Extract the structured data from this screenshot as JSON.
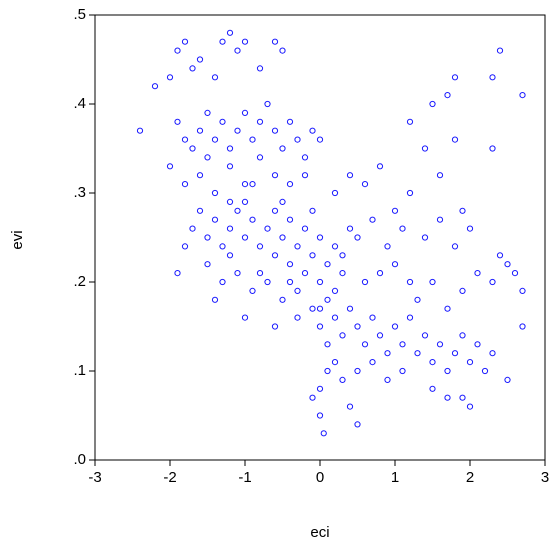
{
  "chart_data": {
    "type": "scatter",
    "xlabel": "eci",
    "ylabel": "evi",
    "color": "#1a1aff",
    "x": [
      -2.4,
      -2.2,
      -2.0,
      -1.9,
      -1.8,
      -1.7,
      -1.6,
      -1.5,
      -1.4,
      -1.3,
      -1.2,
      -1.1,
      -1.0,
      -0.8,
      -0.6,
      -0.5,
      -1.9,
      -1.8,
      -1.7,
      -1.6,
      -1.5,
      -1.4,
      -1.3,
      -1.2,
      -1.1,
      -1.0,
      -0.9,
      -0.8,
      -0.7,
      -0.6,
      -0.5,
      -0.4,
      -0.3,
      -0.2,
      -0.1,
      0.0,
      -2.0,
      -1.8,
      -1.6,
      -1.4,
      -1.2,
      -1.0,
      -0.8,
      -0.6,
      -0.4,
      -0.2,
      -1.6,
      -1.5,
      -1.4,
      -1.3,
      -1.2,
      -1.1,
      -1.0,
      -0.9,
      -0.8,
      -0.7,
      -0.6,
      -0.5,
      -0.4,
      -0.3,
      -0.2,
      -0.1,
      0.0,
      0.1,
      0.2,
      0.3,
      -1.5,
      -1.3,
      -1.1,
      -0.9,
      -0.7,
      -0.5,
      -0.3,
      -0.1,
      0.1,
      -1.8,
      -1.9,
      -1.2,
      -1.0,
      -0.6,
      -0.4,
      -0.2,
      0.0,
      0.2,
      0.4,
      -1.4,
      -1.0,
      -0.6,
      -0.3,
      -1.2,
      -0.8,
      -0.4,
      0.0,
      -1.7,
      -0.9,
      -0.5,
      -0.1,
      0.0,
      0.1,
      0.2,
      0.3,
      0.4,
      0.5,
      0.6,
      0.7,
      0.8,
      0.9,
      1.0,
      1.1,
      1.2,
      0.1,
      0.2,
      0.3,
      0.5,
      0.7,
      0.9,
      1.1,
      0.0,
      -0.1,
      0.0,
      0.05,
      0.4,
      0.5,
      0.6,
      0.8,
      1.0,
      1.2,
      0.3,
      0.5,
      0.7,
      0.9,
      1.1,
      0.6,
      0.8,
      1.0,
      0.4,
      0.2,
      1.3,
      1.4,
      1.5,
      1.6,
      1.7,
      1.8,
      1.9,
      2.0,
      2.1,
      2.2,
      2.3,
      1.5,
      1.7,
      1.9,
      2.0,
      1.3,
      1.5,
      1.7,
      1.9,
      2.1,
      2.3,
      2.5,
      2.7,
      1.4,
      1.6,
      1.8,
      2.0,
      2.4,
      2.6,
      1.2,
      1.4,
      1.6,
      1.8,
      1.2,
      1.5,
      1.7,
      1.8,
      2.3,
      2.4,
      2.7,
      2.7,
      2.5,
      2.3,
      1.9
    ],
    "values": [
      0.37,
      0.42,
      0.43,
      0.46,
      0.47,
      0.44,
      0.45,
      0.39,
      0.43,
      0.47,
      0.48,
      0.46,
      0.47,
      0.44,
      0.47,
      0.46,
      0.38,
      0.36,
      0.35,
      0.37,
      0.34,
      0.36,
      0.38,
      0.35,
      0.37,
      0.39,
      0.36,
      0.38,
      0.4,
      0.37,
      0.35,
      0.38,
      0.36,
      0.34,
      0.37,
      0.36,
      0.33,
      0.31,
      0.32,
      0.3,
      0.33,
      0.31,
      0.34,
      0.32,
      0.31,
      0.32,
      0.28,
      0.25,
      0.27,
      0.24,
      0.26,
      0.28,
      0.25,
      0.27,
      0.24,
      0.26,
      0.23,
      0.25,
      0.22,
      0.24,
      0.21,
      0.23,
      0.2,
      0.22,
      0.19,
      0.21,
      0.22,
      0.2,
      0.21,
      0.19,
      0.2,
      0.18,
      0.19,
      0.17,
      0.18,
      0.24,
      0.21,
      0.29,
      0.29,
      0.28,
      0.27,
      0.26,
      0.25,
      0.24,
      0.26,
      0.18,
      0.16,
      0.15,
      0.16,
      0.23,
      0.21,
      0.2,
      0.17,
      0.26,
      0.31,
      0.29,
      0.28,
      0.15,
      0.13,
      0.16,
      0.14,
      0.17,
      0.15,
      0.13,
      0.16,
      0.14,
      0.12,
      0.15,
      0.13,
      0.16,
      0.1,
      0.11,
      0.09,
      0.1,
      0.11,
      0.09,
      0.1,
      0.08,
      0.07,
      0.05,
      0.03,
      0.06,
      0.04,
      0.2,
      0.21,
      0.22,
      0.2,
      0.23,
      0.25,
      0.27,
      0.24,
      0.26,
      0.31,
      0.33,
      0.28,
      0.32,
      0.3,
      0.12,
      0.14,
      0.11,
      0.13,
      0.1,
      0.12,
      0.14,
      0.11,
      0.13,
      0.1,
      0.12,
      0.08,
      0.07,
      0.07,
      0.06,
      0.18,
      0.2,
      0.17,
      0.19,
      0.21,
      0.2,
      0.22,
      0.19,
      0.25,
      0.27,
      0.24,
      0.26,
      0.23,
      0.21,
      0.3,
      0.35,
      0.32,
      0.36,
      0.38,
      0.4,
      0.41,
      0.43,
      0.43,
      0.46,
      0.41,
      0.15,
      0.09,
      0.35,
      0.28
    ],
    "xlim": [
      -3,
      3
    ],
    "xticks": [
      -3,
      -2,
      -1,
      0,
      1,
      2,
      3
    ],
    "ylim": [
      0,
      0.5
    ],
    "yticks": [
      {
        "value": 0,
        "label": ".0"
      },
      {
        "value": 0.1,
        "label": ".1"
      },
      {
        "value": 0.2,
        "label": ".2"
      },
      {
        "value": 0.3,
        "label": ".3"
      },
      {
        "value": 0.4,
        "label": ".4"
      },
      {
        "value": 0.5,
        "label": ".5"
      }
    ]
  }
}
